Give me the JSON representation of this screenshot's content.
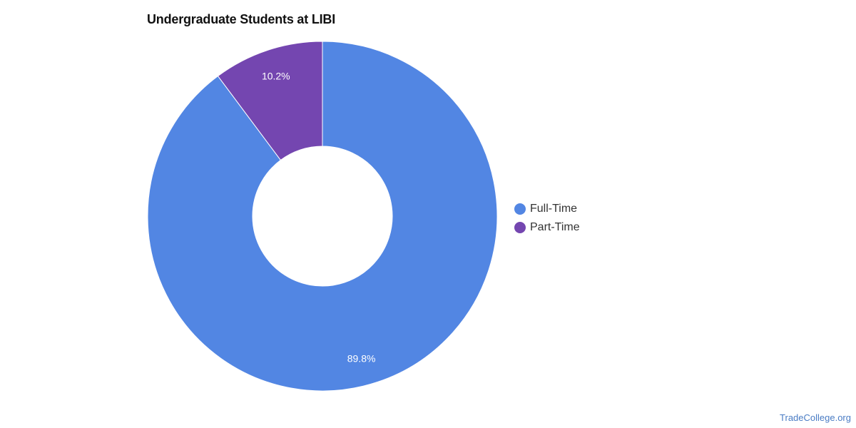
{
  "chart_data": {
    "type": "pie",
    "title": "Undergraduate Students at LIBI",
    "categories": [
      "Full-Time",
      "Part-Time"
    ],
    "values": [
      89.8,
      10.2
    ],
    "data_labels": [
      "89.8%",
      "10.2%"
    ],
    "colors": [
      "#5286e3",
      "#7446b0"
    ],
    "donut": true,
    "legend_position": "right"
  },
  "legend": {
    "items": [
      {
        "label": "Full-Time",
        "color": "#5286e3"
      },
      {
        "label": "Part-Time",
        "color": "#7446b0"
      }
    ]
  },
  "footer": {
    "source": "TradeCollege.org"
  }
}
